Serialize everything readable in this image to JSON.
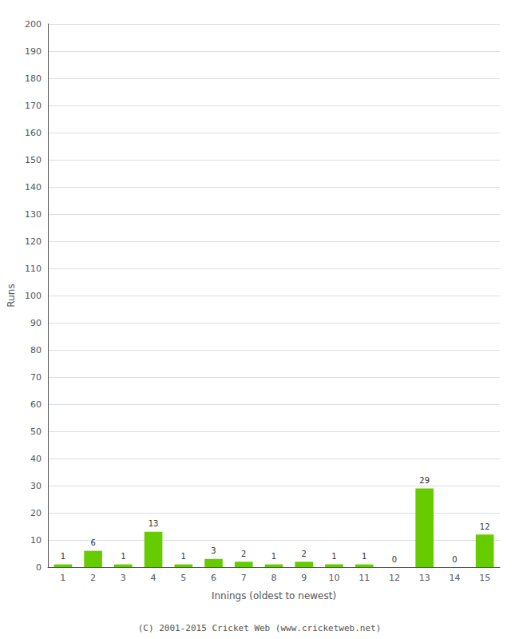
{
  "chart_data": {
    "type": "bar",
    "categories": [
      "1",
      "2",
      "3",
      "4",
      "5",
      "6",
      "7",
      "8",
      "9",
      "10",
      "11",
      "12",
      "13",
      "14",
      "15"
    ],
    "values": [
      1,
      6,
      1,
      13,
      1,
      3,
      2,
      1,
      2,
      1,
      1,
      0,
      29,
      0,
      12
    ],
    "color": "#66cc00",
    "x_label": "Innings (oldest to newest)",
    "y_label": "Runs",
    "ylim": [
      0,
      200
    ],
    "yticks": [
      0,
      10,
      20,
      30,
      40,
      50,
      60,
      70,
      80,
      90,
      100,
      110,
      120,
      130,
      140,
      150,
      160,
      170,
      180,
      190,
      200
    ],
    "grid": true,
    "data_labels": true,
    "annotations": [
      "(C) 2001-2015 Cricket Web (www.cricketweb.net)"
    ]
  }
}
